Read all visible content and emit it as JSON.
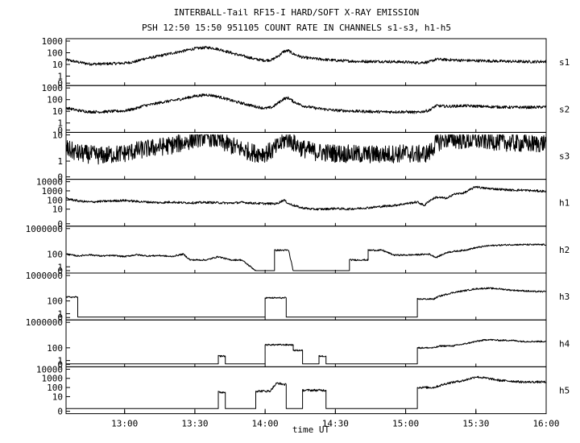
{
  "chart_data": {
    "type": "line",
    "title": "INTERBALL-Tail RF15-I HARD/SOFT X-RAY EMISSION",
    "subtitle": "PSH 12:50 15:50 951105  COUNT RATE IN CHANNELS s1-s3, h1-h5",
    "xlabel": "time UT",
    "x_unit": "minutes UT",
    "xlim": [
      755,
      960
    ],
    "x_ticks": [
      {
        "value": 780,
        "label": "13:00"
      },
      {
        "value": 810,
        "label": "13:30"
      },
      {
        "value": 840,
        "label": "14:00"
      },
      {
        "value": 870,
        "label": "14:30"
      },
      {
        "value": 900,
        "label": "15:00"
      },
      {
        "value": 930,
        "label": "15:30"
      },
      {
        "value": 960,
        "label": "16:00"
      }
    ],
    "y_scale": "log",
    "grid": false,
    "panels": [
      {
        "name": "s1",
        "ymax": 1000,
        "y_tick_labels": [
          "1000",
          "100",
          "10",
          "1",
          "0"
        ],
        "points": [
          [
            755,
            25
          ],
          [
            760,
            16
          ],
          [
            765,
            11
          ],
          [
            770,
            11
          ],
          [
            775,
            12
          ],
          [
            780,
            13
          ],
          [
            785,
            18
          ],
          [
            788,
            30
          ],
          [
            792,
            40
          ],
          [
            796,
            60
          ],
          [
            800,
            90
          ],
          [
            805,
            140
          ],
          [
            810,
            230
          ],
          [
            815,
            280
          ],
          [
            818,
            250
          ],
          [
            822,
            160
          ],
          [
            827,
            80
          ],
          [
            832,
            45
          ],
          [
            836,
            28
          ],
          [
            840,
            22
          ],
          [
            843,
            25
          ],
          [
            846,
            60
          ],
          [
            848,
            130
          ],
          [
            850,
            150
          ],
          [
            852,
            80
          ],
          [
            856,
            40
          ],
          [
            862,
            30
          ],
          [
            870,
            22
          ],
          [
            880,
            18
          ],
          [
            890,
            18
          ],
          [
            900,
            16
          ],
          [
            905,
            14
          ],
          [
            910,
            16
          ],
          [
            913,
            28
          ],
          [
            918,
            25
          ],
          [
            925,
            22
          ],
          [
            935,
            20
          ],
          [
            945,
            18
          ],
          [
            955,
            17
          ],
          [
            960,
            18
          ]
        ]
      },
      {
        "name": "s2",
        "ymax": 1000,
        "y_tick_labels": [
          "1000",
          "100",
          "10",
          "1",
          "0"
        ],
        "points": [
          [
            755,
            20
          ],
          [
            760,
            12
          ],
          [
            765,
            9
          ],
          [
            770,
            9
          ],
          [
            775,
            10
          ],
          [
            780,
            11
          ],
          [
            785,
            18
          ],
          [
            788,
            30
          ],
          [
            792,
            40
          ],
          [
            796,
            60
          ],
          [
            800,
            80
          ],
          [
            805,
            120
          ],
          [
            810,
            200
          ],
          [
            815,
            260
          ],
          [
            818,
            220
          ],
          [
            822,
            140
          ],
          [
            827,
            70
          ],
          [
            832,
            40
          ],
          [
            836,
            25
          ],
          [
            840,
            18
          ],
          [
            843,
            22
          ],
          [
            846,
            60
          ],
          [
            848,
            120
          ],
          [
            850,
            140
          ],
          [
            852,
            70
          ],
          [
            856,
            30
          ],
          [
            862,
            18
          ],
          [
            870,
            12
          ],
          [
            880,
            10
          ],
          [
            890,
            9
          ],
          [
            900,
            9
          ],
          [
            905,
            8
          ],
          [
            910,
            12
          ],
          [
            913,
            30
          ],
          [
            918,
            26
          ],
          [
            925,
            30
          ],
          [
            935,
            25
          ],
          [
            945,
            22
          ],
          [
            955,
            22
          ],
          [
            960,
            24
          ]
        ]
      },
      {
        "name": "s3",
        "ymax": 10,
        "y_tick_labels": [
          "10",
          "1",
          "0"
        ],
        "noise": 0.35,
        "points": [
          [
            755,
            3
          ],
          [
            760,
            2
          ],
          [
            765,
            1.8
          ],
          [
            770,
            1.6
          ],
          [
            775,
            1.8
          ],
          [
            780,
            2
          ],
          [
            785,
            2.5
          ],
          [
            790,
            3
          ],
          [
            795,
            3.5
          ],
          [
            800,
            4
          ],
          [
            805,
            5
          ],
          [
            810,
            7
          ],
          [
            815,
            9
          ],
          [
            818,
            7
          ],
          [
            822,
            5
          ],
          [
            827,
            3.5
          ],
          [
            832,
            2.5
          ],
          [
            836,
            2
          ],
          [
            840,
            2
          ],
          [
            843,
            2.5
          ],
          [
            846,
            4
          ],
          [
            848,
            6
          ],
          [
            850,
            7
          ],
          [
            852,
            5
          ],
          [
            856,
            3
          ],
          [
            862,
            2.2
          ],
          [
            870,
            2
          ],
          [
            880,
            1.8
          ],
          [
            890,
            1.8
          ],
          [
            900,
            2
          ],
          [
            905,
            1.8
          ],
          [
            910,
            2
          ],
          [
            913,
            5
          ],
          [
            918,
            7
          ],
          [
            925,
            6
          ],
          [
            935,
            6
          ],
          [
            945,
            5
          ],
          [
            955,
            4.5
          ],
          [
            960,
            5
          ]
        ]
      },
      {
        "name": "h1",
        "ymax": 10000,
        "y_tick_labels": [
          "10000",
          "1000",
          "100",
          "10",
          "0"
        ],
        "points": [
          [
            755,
            150
          ],
          [
            760,
            80
          ],
          [
            765,
            60
          ],
          [
            770,
            70
          ],
          [
            775,
            80
          ],
          [
            780,
            90
          ],
          [
            785,
            70
          ],
          [
            790,
            60
          ],
          [
            795,
            50
          ],
          [
            800,
            60
          ],
          [
            805,
            50
          ],
          [
            810,
            50
          ],
          [
            815,
            55
          ],
          [
            820,
            50
          ],
          [
            825,
            45
          ],
          [
            830,
            55
          ],
          [
            835,
            45
          ],
          [
            840,
            40
          ],
          [
            845,
            40
          ],
          [
            848,
            100
          ],
          [
            850,
            40
          ],
          [
            855,
            15
          ],
          [
            860,
            10
          ],
          [
            865,
            10
          ],
          [
            870,
            12
          ],
          [
            875,
            10
          ],
          [
            880,
            12
          ],
          [
            885,
            15
          ],
          [
            890,
            20
          ],
          [
            895,
            25
          ],
          [
            900,
            40
          ],
          [
            905,
            60
          ],
          [
            908,
            25
          ],
          [
            910,
            80
          ],
          [
            913,
            200
          ],
          [
            918,
            150
          ],
          [
            920,
            400
          ],
          [
            925,
            600
          ],
          [
            930,
            3000
          ],
          [
            933,
            2000
          ],
          [
            940,
            1500
          ],
          [
            945,
            1200
          ],
          [
            950,
            1200
          ],
          [
            955,
            1000
          ],
          [
            960,
            900
          ]
        ]
      },
      {
        "name": "h2",
        "ymax": 1000000,
        "y_tick_labels": [
          "1000000",
          "100",
          "1",
          "0"
        ],
        "step": true,
        "points": [
          [
            755,
            100
          ],
          [
            760,
            50
          ],
          [
            765,
            80
          ],
          [
            770,
            50
          ],
          [
            775,
            60
          ],
          [
            780,
            40
          ],
          [
            785,
            80
          ],
          [
            790,
            50
          ],
          [
            795,
            60
          ],
          [
            800,
            40
          ],
          [
            805,
            100
          ],
          [
            808,
            12
          ],
          [
            815,
            12
          ],
          [
            820,
            40
          ],
          [
            825,
            12
          ],
          [
            830,
            12
          ],
          [
            836,
            0
          ],
          [
            844,
            0
          ],
          [
            844,
            400
          ],
          [
            850,
            400
          ],
          [
            852,
            0
          ],
          [
            860,
            0
          ],
          [
            876,
            0
          ],
          [
            876,
            12
          ],
          [
            884,
            12
          ],
          [
            884,
            400
          ],
          [
            890,
            400
          ],
          [
            895,
            70
          ],
          [
            900,
            70
          ],
          [
            905,
            80
          ],
          [
            910,
            100
          ],
          [
            913,
            30
          ],
          [
            918,
            200
          ],
          [
            925,
            400
          ],
          [
            930,
            1000
          ],
          [
            935,
            2000
          ],
          [
            940,
            2500
          ],
          [
            945,
            3000
          ],
          [
            950,
            3000
          ],
          [
            955,
            3000
          ],
          [
            960,
            3000
          ]
        ]
      },
      {
        "name": "h3",
        "ymax": 1000000,
        "y_tick_labels": [
          "1000000",
          "100",
          "1",
          "0"
        ],
        "step": true,
        "points": [
          [
            755,
            400
          ],
          [
            760,
            400
          ],
          [
            760,
            0.3
          ],
          [
            840,
            0.3
          ],
          [
            840,
            300
          ],
          [
            849,
            300
          ],
          [
            849,
            0.3
          ],
          [
            905,
            0.3
          ],
          [
            905,
            200
          ],
          [
            912,
            200
          ],
          [
            914,
            500
          ],
          [
            920,
            2000
          ],
          [
            925,
            4000
          ],
          [
            930,
            8000
          ],
          [
            935,
            10000
          ],
          [
            940,
            8000
          ],
          [
            945,
            5000
          ],
          [
            950,
            4000
          ],
          [
            955,
            3000
          ],
          [
            960,
            3000
          ]
        ]
      },
      {
        "name": "h4",
        "ymax": 1000000,
        "y_tick_labels": [
          "1000000",
          "100",
          "1",
          "0"
        ],
        "step": true,
        "points": [
          [
            755,
            0.3
          ],
          [
            820,
            0.3
          ],
          [
            820,
            5
          ],
          [
            823,
            5
          ],
          [
            823,
            0.3
          ],
          [
            840,
            0.3
          ],
          [
            840,
            300
          ],
          [
            852,
            300
          ],
          [
            852,
            40
          ],
          [
            856,
            40
          ],
          [
            856,
            0.3
          ],
          [
            863,
            0.3
          ],
          [
            863,
            5
          ],
          [
            866,
            5
          ],
          [
            866,
            0.3
          ],
          [
            905,
            0.3
          ],
          [
            905,
            100
          ],
          [
            912,
            100
          ],
          [
            915,
            200
          ],
          [
            920,
            200
          ],
          [
            925,
            400
          ],
          [
            930,
            1000
          ],
          [
            935,
            2000
          ],
          [
            940,
            1500
          ],
          [
            945,
            1500
          ],
          [
            950,
            1000
          ],
          [
            955,
            1000
          ],
          [
            960,
            1000
          ]
        ]
      },
      {
        "name": "h5",
        "ymax": 10000,
        "y_tick_labels": [
          "10000",
          "1000",
          "100",
          "10",
          "0"
        ],
        "step": true,
        "points": [
          [
            755,
            0.5
          ],
          [
            820,
            0.5
          ],
          [
            820,
            30
          ],
          [
            823,
            30
          ],
          [
            823,
            0.5
          ],
          [
            836,
            0.5
          ],
          [
            836,
            40
          ],
          [
            842,
            40
          ],
          [
            845,
            300
          ],
          [
            849,
            200
          ],
          [
            849,
            0.5
          ],
          [
            856,
            0.5
          ],
          [
            856,
            50
          ],
          [
            866,
            50
          ],
          [
            866,
            0.5
          ],
          [
            905,
            0.5
          ],
          [
            905,
            100
          ],
          [
            912,
            100
          ],
          [
            918,
            300
          ],
          [
            925,
            600
          ],
          [
            930,
            1500
          ],
          [
            935,
            1000
          ],
          [
            940,
            600
          ],
          [
            945,
            500
          ],
          [
            950,
            400
          ],
          [
            955,
            400
          ],
          [
            960,
            400
          ]
        ]
      }
    ]
  }
}
